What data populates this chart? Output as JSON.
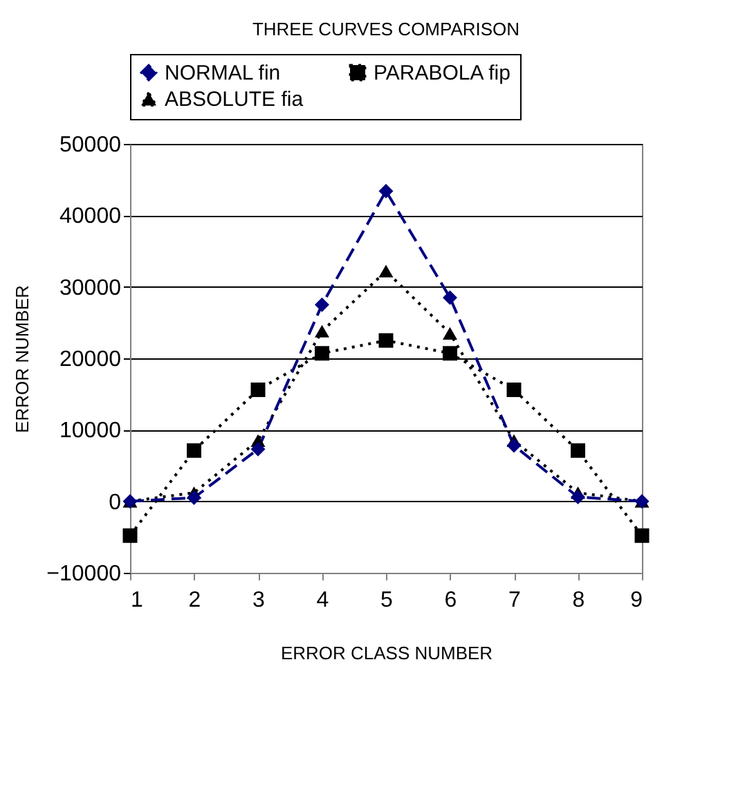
{
  "chart_data": {
    "type": "line",
    "title": "THREE CURVES COMPARISON",
    "xlabel": "ERROR CLASS NUMBER",
    "ylabel": "ERROR NUMBER",
    "categories": [
      "1",
      "2",
      "3",
      "4",
      "5",
      "6",
      "7",
      "8",
      "9"
    ],
    "series": [
      {
        "name": "NORMAL fin",
        "color": "#000080",
        "marker": "diamond",
        "line_style": "dashed",
        "values": [
          0,
          500,
          7300,
          27500,
          43400,
          28500,
          7800,
          600,
          0
        ]
      },
      {
        "name": "PARABOLA fip",
        "color": "#000000",
        "marker": "square",
        "line_style": "dotted",
        "values": [
          -4800,
          7100,
          15600,
          20700,
          22500,
          20700,
          15600,
          7100,
          -4800
        ]
      },
      {
        "name": "ABSOLUTE fia",
        "color": "#000000",
        "marker": "triangle",
        "line_style": "dotted",
        "values": [
          0,
          1200,
          8500,
          23800,
          32200,
          23500,
          8500,
          1200,
          0
        ]
      }
    ],
    "ylim": [
      -10000,
      50000
    ],
    "yticks": [
      -10000,
      0,
      10000,
      20000,
      30000,
      40000,
      50000
    ],
    "grid": "y",
    "legend": "top"
  }
}
